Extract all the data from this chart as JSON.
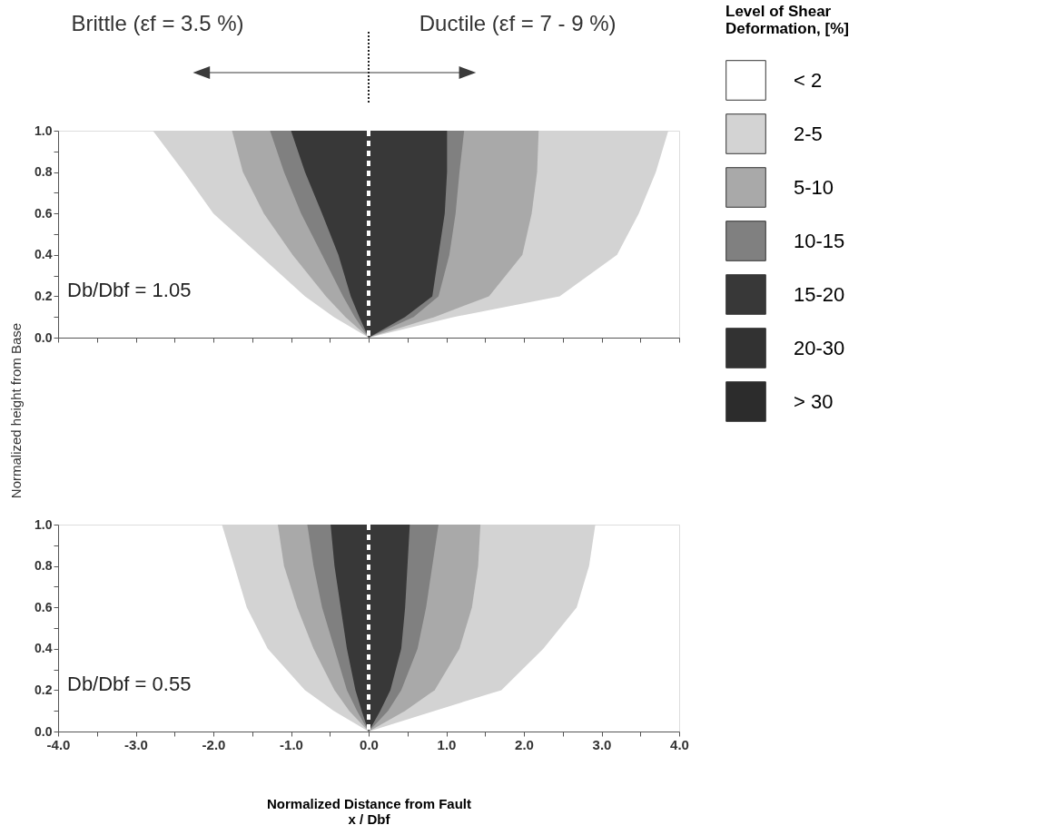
{
  "chart_data": [
    {
      "type": "area",
      "ylabel": "Normalized height from Base",
      "legend_title": "Level of Shear\nDeformation, [%]",
      "legend": "right",
      "tick_labels": "y",
      "xlim": [
        -4,
        4
      ],
      "xticks": [
        {
          "value": -4,
          "label": null
        },
        {
          "value": -3.5,
          "label": null
        },
        {
          "value": -3,
          "label": null
        },
        {
          "value": -2.5,
          "label": null
        },
        {
          "value": -2,
          "label": null
        },
        {
          "value": -1.5,
          "label": null
        },
        {
          "value": -1,
          "label": null
        },
        {
          "value": -0.5,
          "label": null
        },
        {
          "value": 0,
          "label": null
        },
        {
          "value": 0.5,
          "label": null
        },
        {
          "value": 1,
          "label": null
        },
        {
          "value": 1.5,
          "label": null
        },
        {
          "value": 2,
          "label": null
        },
        {
          "value": 2.5,
          "label": null
        },
        {
          "value": 3,
          "label": null
        },
        {
          "value": 3.5,
          "label": null
        },
        {
          "value": 4,
          "label": null
        }
      ],
      "ylim": [
        0,
        1
      ],
      "yticks": [
        {
          "value": 0,
          "label": "0.0"
        },
        {
          "value": 0.1,
          "label": null
        },
        {
          "value": 0.2,
          "label": "0.2"
        },
        {
          "value": 0.3,
          "label": null
        },
        {
          "value": 0.4,
          "label": "0.4"
        },
        {
          "value": 0.5,
          "label": null
        },
        {
          "value": 0.6,
          "label": "0.6"
        },
        {
          "value": 0.7,
          "label": null
        },
        {
          "value": 0.8,
          "label": "0.8"
        },
        {
          "value": 0.9,
          "label": null
        },
        {
          "value": 1,
          "label": "1.0"
        }
      ],
      "annotations": [
        "Brittle (εf = 3.5 %)",
        "Ductile (εf = 7 - 9 %)",
        "Db/Dbf = 1.05"
      ],
      "ref_lines": [
        {
          "axis": "x",
          "value": 0,
          "color": "#ffffff",
          "line_style": "dashed"
        }
      ],
      "series": [
        {
          "name": "< 2",
          "color": "#ffffff"
        },
        {
          "name": "2-5",
          "color": "#d3d3d3",
          "x": [
            -2.78,
            -2.38,
            -2.0,
            -1.41,
            -0.82,
            -0.45,
            0,
            1.1,
            2.46,
            3.2,
            3.48,
            3.7,
            3.86
          ],
          "values": [
            1.0,
            0.8,
            0.6,
            0.4,
            0.2,
            0.1,
            0,
            0.1,
            0.2,
            0.4,
            0.6,
            0.8,
            1.0
          ]
        },
        {
          "name": "5-10",
          "color": "#a9a9a9",
          "x": [
            -1.76,
            -1.62,
            -1.35,
            -0.98,
            -0.55,
            -0.3,
            0,
            0.85,
            1.55,
            1.98,
            2.1,
            2.17,
            2.19
          ],
          "values": [
            1.0,
            0.8,
            0.6,
            0.4,
            0.2,
            0.1,
            0,
            0.1,
            0.2,
            0.4,
            0.6,
            0.8,
            1.0
          ]
        },
        {
          "name": "10-15",
          "color": "#808080",
          "x": [
            -1.27,
            -1.09,
            -0.87,
            -0.6,
            -0.33,
            -0.18,
            0,
            0.58,
            0.9,
            1.04,
            1.12,
            1.17,
            1.23
          ],
          "values": [
            1.0,
            0.8,
            0.6,
            0.4,
            0.2,
            0.1,
            0,
            0.1,
            0.2,
            0.4,
            0.6,
            0.8,
            1.0
          ]
        },
        {
          "name": "15-20",
          "color": "#383838",
          "x": [
            -1.0,
            -0.82,
            -0.6,
            -0.39,
            -0.23,
            -0.12,
            0,
            0.47,
            0.82,
            0.9,
            0.98,
            1.01,
            1.01
          ],
          "values": [
            1.0,
            0.8,
            0.6,
            0.4,
            0.2,
            0.1,
            0,
            0.1,
            0.2,
            0.4,
            0.6,
            0.8,
            1.0
          ]
        },
        {
          "name": "20-30",
          "color": "#323232"
        },
        {
          "name": "> 30",
          "color": "#2c2c2c"
        }
      ]
    },
    {
      "type": "area",
      "xlabel": "Normalized Distance from Fault\nx / Dbf",
      "xlim": [
        -4,
        4
      ],
      "xticks": [
        {
          "value": -4,
          "label": "-4.0"
        },
        {
          "value": -3.5,
          "label": null
        },
        {
          "value": -3,
          "label": "-3.0"
        },
        {
          "value": -2.5,
          "label": null
        },
        {
          "value": -2,
          "label": "-2.0"
        },
        {
          "value": -1.5,
          "label": null
        },
        {
          "value": -1,
          "label": "-1.0"
        },
        {
          "value": -0.5,
          "label": null
        },
        {
          "value": 0,
          "label": "0.0"
        },
        {
          "value": 0.5,
          "label": null
        },
        {
          "value": 1,
          "label": "1.0"
        },
        {
          "value": 1.5,
          "label": null
        },
        {
          "value": 2,
          "label": "2.0"
        },
        {
          "value": 2.5,
          "label": null
        },
        {
          "value": 3,
          "label": "3.0"
        },
        {
          "value": 3.5,
          "label": null
        },
        {
          "value": 4,
          "label": "4.0"
        }
      ],
      "ylim": [
        0,
        1
      ],
      "yticks": [
        {
          "value": 0,
          "label": "0.0"
        },
        {
          "value": 0.1,
          "label": null
        },
        {
          "value": 0.2,
          "label": "0.2"
        },
        {
          "value": 0.3,
          "label": null
        },
        {
          "value": 0.4,
          "label": "0.4"
        },
        {
          "value": 0.5,
          "label": null
        },
        {
          "value": 0.6,
          "label": "0.6"
        },
        {
          "value": 0.7,
          "label": null
        },
        {
          "value": 0.8,
          "label": "0.8"
        },
        {
          "value": 0.9,
          "label": null
        },
        {
          "value": 1,
          "label": "1.0"
        }
      ],
      "annotations": [
        "Db/Dbf = 0.55"
      ],
      "ref_lines": [
        {
          "axis": "x",
          "value": 0,
          "color": "#ffffff",
          "line_style": "dashed"
        }
      ],
      "series": [
        {
          "name": "2-5",
          "color": "#d3d3d3",
          "x": [
            -1.89,
            -1.73,
            -1.57,
            -1.3,
            -0.82,
            -0.45,
            0,
            0.85,
            1.71,
            2.25,
            2.68,
            2.84,
            2.92
          ],
          "values": [
            1.0,
            0.8,
            0.6,
            0.4,
            0.2,
            0.1,
            0,
            0.1,
            0.2,
            0.4,
            0.6,
            0.8,
            1.0
          ]
        },
        {
          "name": "5-10",
          "color": "#a9a9a9",
          "x": [
            -1.17,
            -1.09,
            -0.92,
            -0.71,
            -0.44,
            -0.25,
            0,
            0.47,
            0.85,
            1.17,
            1.33,
            1.41,
            1.44
          ],
          "values": [
            1.0,
            0.8,
            0.6,
            0.4,
            0.2,
            0.1,
            0,
            0.1,
            0.2,
            0.4,
            0.6,
            0.8,
            1.0
          ]
        },
        {
          "name": "10-15",
          "color": "#808080",
          "x": [
            -0.79,
            -0.71,
            -0.6,
            -0.44,
            -0.28,
            -0.15,
            0,
            0.25,
            0.42,
            0.63,
            0.74,
            0.82,
            0.9
          ],
          "values": [
            1.0,
            0.8,
            0.6,
            0.4,
            0.2,
            0.1,
            0,
            0.1,
            0.2,
            0.4,
            0.6,
            0.8,
            1.0
          ]
        },
        {
          "name": "15-20",
          "color": "#383838",
          "x": [
            -0.49,
            -0.44,
            -0.36,
            -0.28,
            -0.17,
            -0.09,
            0,
            0.15,
            0.28,
            0.42,
            0.47,
            0.5,
            0.53
          ],
          "values": [
            1.0,
            0.8,
            0.6,
            0.4,
            0.2,
            0.1,
            0,
            0.1,
            0.2,
            0.4,
            0.6,
            0.8,
            1.0
          ]
        }
      ]
    }
  ]
}
